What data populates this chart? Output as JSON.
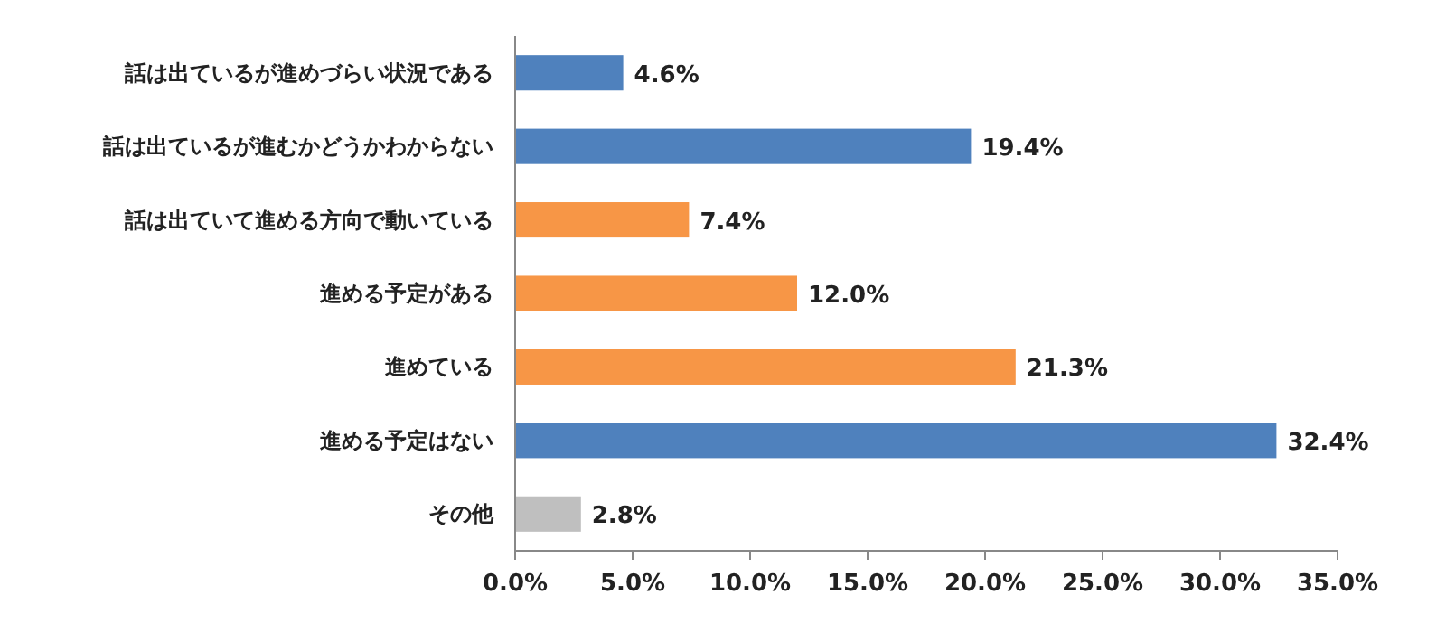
{
  "chart_data": {
    "type": "bar",
    "orientation": "horizontal",
    "categories": [
      "話は出ているが進めづらい状況である",
      "話は出ているが進むかどうかわからない",
      "話は出ていて進める方向で動いている",
      "進める予定がある",
      "進めている",
      "進める予定はない",
      "その他"
    ],
    "values": [
      4.6,
      19.4,
      7.4,
      12.0,
      21.3,
      32.4,
      2.8
    ],
    "colors": [
      "#4f81bd",
      "#4f81bd",
      "#f79646",
      "#f79646",
      "#f79646",
      "#4f81bd",
      "#bfbfbf"
    ],
    "value_labels": [
      "4.6%",
      "19.4%",
      "7.4%",
      "12.0%",
      "21.3%",
      "32.4%",
      "2.8%"
    ],
    "xlim": [
      0,
      35
    ],
    "xticks": [
      {
        "value": 0,
        "label": "0.0%"
      },
      {
        "value": 5,
        "label": "5.0%"
      },
      {
        "value": 10,
        "label": "10.0%"
      },
      {
        "value": 15,
        "label": "15.0%"
      },
      {
        "value": 20,
        "label": "20.0%"
      },
      {
        "value": 25,
        "label": "25.0%"
      },
      {
        "value": 30,
        "label": "30.0%"
      },
      {
        "value": 35,
        "label": "35.0%"
      }
    ]
  }
}
